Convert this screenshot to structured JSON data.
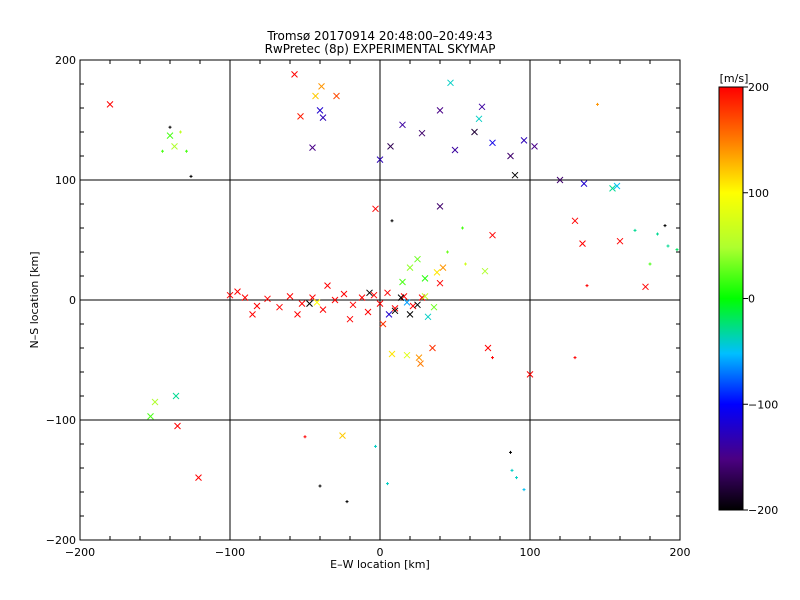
{
  "chart_data": [
    {
      "type": "scatter",
      "title": "Tromsø 20170914 20:48:00–20:49:43",
      "subtitle": "RwPretec (8p) EXPERIMENTAL SKYMAP",
      "xlabel": "E–W location [km]",
      "ylabel": "N–S location [km]",
      "xlim": [
        -200,
        200
      ],
      "ylim": [
        -200,
        200
      ],
      "x_ticks": [
        -200,
        -100,
        0,
        100,
        200
      ],
      "y_ticks": [
        -200,
        -100,
        0,
        100,
        200
      ],
      "x_tick_labels": [
        "−200",
        "−100",
        "0",
        "100",
        "200"
      ],
      "y_tick_labels": [
        "−200",
        "−100",
        "0",
        "100",
        "200"
      ],
      "grid": true,
      "marker_colour_by": "velocity",
      "points": [
        {
          "x": -180,
          "y": 163,
          "v": 200,
          "m": "x"
        },
        {
          "x": -57,
          "y": 188,
          "v": 200,
          "m": "x"
        },
        {
          "x": -53,
          "y": 153,
          "v": 190,
          "m": "x"
        },
        {
          "x": -39,
          "y": 178,
          "v": 140,
          "m": "x"
        },
        {
          "x": -29,
          "y": 170,
          "v": 170,
          "m": "x"
        },
        {
          "x": -43,
          "y": 170,
          "v": 120,
          "m": "x"
        },
        {
          "x": -45,
          "y": 127,
          "v": -150,
          "m": "x"
        },
        {
          "x": -40,
          "y": 158,
          "v": -120,
          "m": "x"
        },
        {
          "x": -38,
          "y": 152,
          "v": -130,
          "m": "x"
        },
        {
          "x": -140,
          "y": 137,
          "v": 20,
          "m": "x"
        },
        {
          "x": -137,
          "y": 128,
          "v": 50,
          "m": "x"
        },
        {
          "x": -133,
          "y": 140,
          "v": 60,
          "m": "+"
        },
        {
          "x": -145,
          "y": 124,
          "v": 20,
          "m": "+"
        },
        {
          "x": -140,
          "y": 144,
          "v": -200,
          "m": "+"
        },
        {
          "x": -129,
          "y": 124,
          "v": 20,
          "m": "+"
        },
        {
          "x": -126,
          "y": 103,
          "v": -200,
          "m": "+"
        },
        {
          "x": 0,
          "y": 117,
          "v": -130,
          "m": "x"
        },
        {
          "x": 7,
          "y": 128,
          "v": -170,
          "m": "x"
        },
        {
          "x": 15,
          "y": 146,
          "v": -140,
          "m": "x"
        },
        {
          "x": 28,
          "y": 139,
          "v": -160,
          "m": "x"
        },
        {
          "x": 40,
          "y": 158,
          "v": -150,
          "m": "x"
        },
        {
          "x": 50,
          "y": 125,
          "v": -140,
          "m": "x"
        },
        {
          "x": 63,
          "y": 140,
          "v": -180,
          "m": "x"
        },
        {
          "x": 75,
          "y": 131,
          "v": -110,
          "m": "x"
        },
        {
          "x": 87,
          "y": 120,
          "v": -160,
          "m": "x"
        },
        {
          "x": 96,
          "y": 133,
          "v": -130,
          "m": "x"
        },
        {
          "x": 103,
          "y": 128,
          "v": -150,
          "m": "x"
        },
        {
          "x": 47,
          "y": 181,
          "v": -40,
          "m": "x"
        },
        {
          "x": 66,
          "y": 151,
          "v": -40,
          "m": "x"
        },
        {
          "x": 68,
          "y": 161,
          "v": -140,
          "m": "x"
        },
        {
          "x": 90,
          "y": 104,
          "v": -200,
          "m": "x"
        },
        {
          "x": 120,
          "y": 100,
          "v": -160,
          "m": "x"
        },
        {
          "x": 136,
          "y": 97,
          "v": -120,
          "m": "x"
        },
        {
          "x": 155,
          "y": 93,
          "v": -30,
          "m": "x"
        },
        {
          "x": 158,
          "y": 95,
          "v": -50,
          "m": "x"
        },
        {
          "x": 145,
          "y": 163,
          "v": 140,
          "m": "+"
        },
        {
          "x": 40,
          "y": 78,
          "v": -160,
          "m": "x"
        },
        {
          "x": -3,
          "y": 76,
          "v": 200,
          "m": "x"
        },
        {
          "x": 8,
          "y": 66,
          "v": -200,
          "m": "+"
        },
        {
          "x": 130,
          "y": 66,
          "v": 200,
          "m": "x"
        },
        {
          "x": 135,
          "y": 47,
          "v": 200,
          "m": "x"
        },
        {
          "x": 160,
          "y": 49,
          "v": 200,
          "m": "x"
        },
        {
          "x": 177,
          "y": 11,
          "v": 200,
          "m": "x"
        },
        {
          "x": 75,
          "y": 54,
          "v": 200,
          "m": "x"
        },
        {
          "x": 70,
          "y": 24,
          "v": 50,
          "m": "x"
        },
        {
          "x": 40,
          "y": 14,
          "v": 200,
          "m": "x"
        },
        {
          "x": 25,
          "y": 34,
          "v": 30,
          "m": "x"
        },
        {
          "x": 30,
          "y": 18,
          "v": 10,
          "m": "x"
        },
        {
          "x": 38,
          "y": 23,
          "v": 110,
          "m": "x"
        },
        {
          "x": 42,
          "y": 27,
          "v": 140,
          "m": "x"
        },
        {
          "x": 20,
          "y": 27,
          "v": 40,
          "m": "x"
        },
        {
          "x": 15,
          "y": 15,
          "v": 20,
          "m": "x"
        },
        {
          "x": 45,
          "y": 40,
          "v": 30,
          "m": "+"
        },
        {
          "x": 55,
          "y": 60,
          "v": 20,
          "m": "+"
        },
        {
          "x": 57,
          "y": 30,
          "v": 70,
          "m": "+"
        },
        {
          "x": -100,
          "y": 4,
          "v": 200,
          "m": "x"
        },
        {
          "x": -95,
          "y": 7,
          "v": 200,
          "m": "x"
        },
        {
          "x": -90,
          "y": 2,
          "v": 200,
          "m": "x"
        },
        {
          "x": -82,
          "y": -5,
          "v": 200,
          "m": "x"
        },
        {
          "x": -75,
          "y": 1,
          "v": 200,
          "m": "x"
        },
        {
          "x": -67,
          "y": -6,
          "v": 200,
          "m": "x"
        },
        {
          "x": -60,
          "y": 3,
          "v": 200,
          "m": "x"
        },
        {
          "x": -52,
          "y": -3,
          "v": 200,
          "m": "x"
        },
        {
          "x": -45,
          "y": 2,
          "v": 200,
          "m": "x"
        },
        {
          "x": -38,
          "y": -8,
          "v": 200,
          "m": "x"
        },
        {
          "x": -30,
          "y": 0,
          "v": 200,
          "m": "x"
        },
        {
          "x": -24,
          "y": 5,
          "v": 200,
          "m": "x"
        },
        {
          "x": -18,
          "y": -4,
          "v": 200,
          "m": "x"
        },
        {
          "x": -12,
          "y": 2,
          "v": 200,
          "m": "x"
        },
        {
          "x": -8,
          "y": -10,
          "v": 200,
          "m": "x"
        },
        {
          "x": -4,
          "y": 4,
          "v": 200,
          "m": "x"
        },
        {
          "x": 0,
          "y": -3,
          "v": 200,
          "m": "x"
        },
        {
          "x": 5,
          "y": 6,
          "v": 200,
          "m": "x"
        },
        {
          "x": 10,
          "y": -7,
          "v": 200,
          "m": "x"
        },
        {
          "x": 16,
          "y": 3,
          "v": 200,
          "m": "x"
        },
        {
          "x": 22,
          "y": -5,
          "v": 200,
          "m": "x"
        },
        {
          "x": 28,
          "y": 2,
          "v": 200,
          "m": "x"
        },
        {
          "x": -85,
          "y": -12,
          "v": 200,
          "m": "x"
        },
        {
          "x": -55,
          "y": -12,
          "v": 200,
          "m": "x"
        },
        {
          "x": -35,
          "y": 12,
          "v": 200,
          "m": "x"
        },
        {
          "x": -20,
          "y": -16,
          "v": 200,
          "m": "x"
        },
        {
          "x": 2,
          "y": -20,
          "v": 180,
          "m": "x"
        },
        {
          "x": 10,
          "y": -9,
          "v": -200,
          "m": "x"
        },
        {
          "x": 14,
          "y": 2,
          "v": -200,
          "m": "x"
        },
        {
          "x": 20,
          "y": -12,
          "v": -200,
          "m": "x"
        },
        {
          "x": 25,
          "y": -4,
          "v": -200,
          "m": "x"
        },
        {
          "x": 18,
          "y": -2,
          "v": -60,
          "m": "x"
        },
        {
          "x": 32,
          "y": -14,
          "v": -40,
          "m": "x"
        },
        {
          "x": 36,
          "y": -6,
          "v": 30,
          "m": "x"
        },
        {
          "x": 30,
          "y": 3,
          "v": 60,
          "m": "x"
        },
        {
          "x": 6,
          "y": -12,
          "v": -120,
          "m": "x"
        },
        {
          "x": -7,
          "y": 6,
          "v": -200,
          "m": "x"
        },
        {
          "x": -47,
          "y": -3,
          "v": -200,
          "m": "x"
        },
        {
          "x": -42,
          "y": -2,
          "v": 100,
          "m": "x"
        },
        {
          "x": 35,
          "y": -40,
          "v": 180,
          "m": "x"
        },
        {
          "x": 26,
          "y": -48,
          "v": 140,
          "m": "x"
        },
        {
          "x": 18,
          "y": -46,
          "v": 80,
          "m": "x"
        },
        {
          "x": 8,
          "y": -45,
          "v": 110,
          "m": "x"
        },
        {
          "x": 27,
          "y": -53,
          "v": 150,
          "m": "x"
        },
        {
          "x": 72,
          "y": -40,
          "v": 200,
          "m": "x"
        },
        {
          "x": 100,
          "y": -62,
          "v": 200,
          "m": "x"
        },
        {
          "x": 130,
          "y": -48,
          "v": 200,
          "m": "+"
        },
        {
          "x": 75,
          "y": -48,
          "v": 200,
          "m": "+"
        },
        {
          "x": -150,
          "y": -85,
          "v": 50,
          "m": "x"
        },
        {
          "x": -153,
          "y": -97,
          "v": 20,
          "m": "x"
        },
        {
          "x": -136,
          "y": -80,
          "v": -30,
          "m": "x"
        },
        {
          "x": -135,
          "y": -105,
          "v": 200,
          "m": "x"
        },
        {
          "x": -121,
          "y": -148,
          "v": 200,
          "m": "x"
        },
        {
          "x": -25,
          "y": -113,
          "v": 120,
          "m": "x"
        },
        {
          "x": -50,
          "y": -114,
          "v": 200,
          "m": "+"
        },
        {
          "x": -40,
          "y": -155,
          "v": -200,
          "m": "+"
        },
        {
          "x": -22,
          "y": -168,
          "v": -200,
          "m": "+"
        },
        {
          "x": -3,
          "y": -122,
          "v": -40,
          "m": "+"
        },
        {
          "x": 5,
          "y": -153,
          "v": -40,
          "m": "+"
        },
        {
          "x": 87,
          "y": -127,
          "v": -200,
          "m": "+"
        },
        {
          "x": 88,
          "y": -142,
          "v": -40,
          "m": "+"
        },
        {
          "x": 91,
          "y": -148,
          "v": -40,
          "m": "+"
        },
        {
          "x": 96,
          "y": -158,
          "v": -50,
          "m": "+"
        },
        {
          "x": 170,
          "y": 58,
          "v": -30,
          "m": "+"
        },
        {
          "x": 185,
          "y": 55,
          "v": -30,
          "m": "+"
        },
        {
          "x": 192,
          "y": 45,
          "v": -30,
          "m": "+"
        },
        {
          "x": 198,
          "y": 42,
          "v": -20,
          "m": "+"
        },
        {
          "x": 180,
          "y": 30,
          "v": 20,
          "m": "+"
        },
        {
          "x": 138,
          "y": 12,
          "v": 200,
          "m": "+"
        },
        {
          "x": 190,
          "y": 62,
          "v": -200,
          "m": "+"
        }
      ],
      "colorbar": {
        "unit_label": "[m/s]",
        "min": -200,
        "max": 200,
        "ticks": [
          200,
          100,
          0,
          -100,
          -200
        ],
        "tick_labels": [
          "200",
          "100",
          "0",
          "−100",
          "−200"
        ]
      }
    }
  ]
}
